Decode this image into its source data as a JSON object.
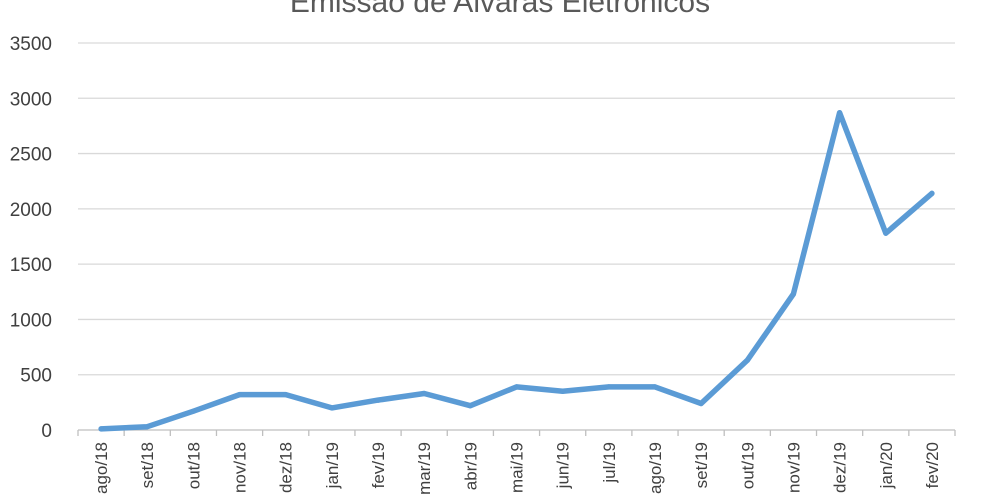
{
  "chart_data": {
    "type": "line",
    "title": "Emissão de Alvarás Eletrônicos",
    "xlabel": "",
    "ylabel": "",
    "categories": [
      "ago/18",
      "set/18",
      "out/18",
      "nov/18",
      "dez/18",
      "jan/19",
      "fev/19",
      "mar/19",
      "abr/19",
      "mai/19",
      "jun/19",
      "jul/19",
      "ago/19",
      "set/19",
      "out/19",
      "nov/19",
      "dez/19",
      "jan/20",
      "fev/20"
    ],
    "series": [
      {
        "values": [
          10,
          30,
          170,
          320,
          320,
          200,
          270,
          330,
          220,
          390,
          350,
          390,
          390,
          240,
          630,
          1230,
          2870,
          1780,
          2140
        ]
      }
    ],
    "ylim": [
      0,
      3500
    ],
    "yticks": [
      "0",
      "500",
      "1000",
      "1500",
      "2000",
      "2500",
      "3000",
      "3500"
    ],
    "grid": true,
    "legend": "none",
    "colors": {
      "series": "#5b9bd5"
    }
  }
}
